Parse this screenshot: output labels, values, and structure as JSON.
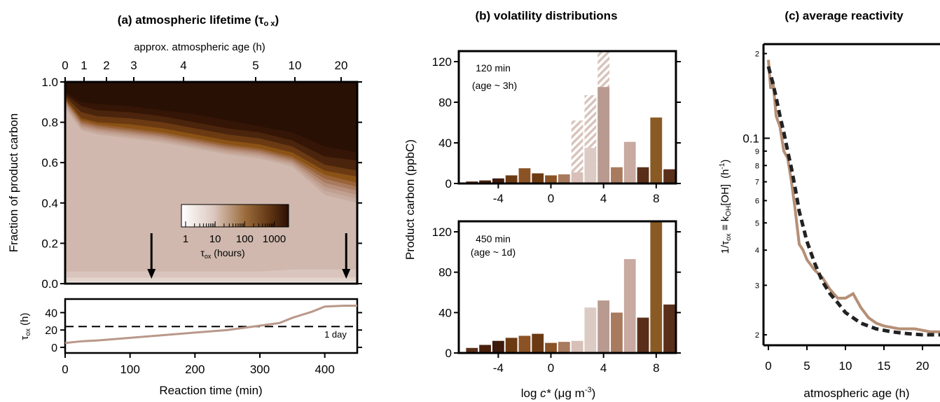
{
  "colors": {
    "sheet": [
      "#f6f1ee",
      "#e4d4ce",
      "#d9c5bd",
      "#d0b8ae",
      "#c8ac9f",
      "#c0a090",
      "#b78f7a",
      "#a87a5e",
      "#9a6438",
      "#8a5215",
      "#6b3a12",
      "#4a240c",
      "#351505",
      "#281005"
    ],
    "bars": [
      "#5a2f1a",
      "#4a200c",
      "#3d1a0c",
      "#6b3a12",
      "#8a5225",
      "#6b3a12",
      "#8a5225",
      "#a87a5e",
      "#d8c0b8",
      "#dccac4",
      "#b89a90",
      "#a87a5e",
      "#c9aaa0",
      "#5a2f1a",
      "#8a5a25"
    ],
    "tau_line": "#b9988a",
    "react_line": "#b58f75",
    "fit_line": "#222222"
  },
  "panel_a": {
    "title_text": "(a) atmospheric lifetime (",
    "title_sym": "τ",
    "title_sub": "o x",
    "title_end": ")",
    "top_axis_label": "approx. atmospheric age (h)",
    "top_ticks": [
      "0",
      "1",
      "2",
      "3",
      "4",
      "5",
      "10",
      "20"
    ],
    "ylabel": "Fraction of product carbon",
    "ylabels": [
      "0.0",
      "0.2",
      "0.4",
      "0.6",
      "0.8",
      "1.0"
    ],
    "colorbar_ticks": [
      "1",
      "10",
      "100",
      "1000"
    ],
    "colorbar_label": "τ",
    "colorbar_label_sub": "ox",
    "colorbar_label_end": " (hours)",
    "arrows_at_min": [
      133,
      433
    ],
    "bottom_ylabel": "τ",
    "bottom_ylabel_sub": "ox",
    "bottom_ylabel_end": " (h)",
    "bottom_ylabels": [
      "0",
      "20",
      "40"
    ],
    "one_day_label": "1 day",
    "one_day_h": 24,
    "xlabel": "Reaction time (min)",
    "xlabels": [
      "0",
      "100",
      "200",
      "300",
      "400"
    ],
    "xlim": [
      0,
      450
    ]
  },
  "panel_b": {
    "title": "(b) volatility distributions",
    "ylabel": "Product carbon (ppbC)",
    "ylabels": [
      "0",
      "40",
      "80",
      "120"
    ],
    "xlabels": [
      "-4",
      "0",
      "4",
      "8"
    ],
    "xlabel_pre": "log ",
    "xlabel_c": "c*",
    "xlabel_units": " (μg m",
    "xlabel_sup": "-3",
    "xlabel_end": ")",
    "top_line1": "120 min",
    "top_line2": "(age ~ 3h)",
    "bottom_line1": "450 min",
    "bottom_line2": "(age ~ 1d)"
  },
  "panel_c": {
    "title": "(c) average reactivity",
    "ylabel_a": "1/",
    "ylabel_tau": "τ",
    "ylabel_tau_sub": "ox",
    "ylabel_mid": " ≡ ",
    "ylabel_k": "k",
    "ylabel_k_sub": "OH",
    "ylabel_oh": "[OH]",
    "ylabel_unit": "(h",
    "ylabel_unit_sup": "-1",
    "ylabel_unit_end": ")",
    "yticks": [
      {
        "v": 0.2,
        "t": "2"
      },
      {
        "v": 0.1,
        "t": "0.1"
      },
      {
        "v": 0.09,
        "t": "9"
      },
      {
        "v": 0.08,
        "t": "8"
      },
      {
        "v": 0.07,
        "t": "7"
      },
      {
        "v": 0.06,
        "t": "6"
      },
      {
        "v": 0.05,
        "t": "5"
      },
      {
        "v": 0.04,
        "t": "4"
      },
      {
        "v": 0.03,
        "t": "3"
      },
      {
        "v": 0.02,
        "t": "2"
      }
    ],
    "xlabels": [
      "0",
      "5",
      "10",
      "15",
      "20"
    ],
    "xlabel": "atmospheric age (h)"
  },
  "chart_data": [
    {
      "type": "area",
      "title": "(a) atmospheric lifetime (τox)",
      "xlabel": "Reaction time (min)",
      "ylabel": "Fraction of product carbon",
      "xlim": [
        0,
        450
      ],
      "ylim": [
        0,
        1
      ],
      "x": [
        0,
        25,
        50,
        100,
        150,
        200,
        250,
        300,
        350,
        400,
        450
      ],
      "series": [
        {
          "values": [
            0.01,
            0.01,
            0.01,
            0.01,
            0.01,
            0.01,
            0.01,
            0.01,
            0.01,
            0.01,
            0.01
          ]
        },
        {
          "values": [
            0.03,
            0.03,
            0.03,
            0.03,
            0.03,
            0.03,
            0.03,
            0.03,
            0.03,
            0.03,
            0.03
          ]
        },
        {
          "values": [
            0.06,
            0.06,
            0.06,
            0.06,
            0.06,
            0.06,
            0.06,
            0.06,
            0.07,
            0.07,
            0.07
          ]
        },
        {
          "values": [
            0.87,
            0.76,
            0.74,
            0.72,
            0.7,
            0.67,
            0.64,
            0.62,
            0.58,
            0.44,
            0.4
          ]
        },
        {
          "values": [
            0.88,
            0.77,
            0.75,
            0.73,
            0.71,
            0.68,
            0.65,
            0.63,
            0.59,
            0.46,
            0.42
          ]
        },
        {
          "values": [
            0.89,
            0.78,
            0.76,
            0.74,
            0.72,
            0.69,
            0.66,
            0.64,
            0.6,
            0.48,
            0.44
          ]
        },
        {
          "values": [
            0.9,
            0.79,
            0.77,
            0.75,
            0.73,
            0.7,
            0.67,
            0.65,
            0.61,
            0.5,
            0.46
          ]
        },
        {
          "values": [
            0.91,
            0.8,
            0.78,
            0.76,
            0.74,
            0.71,
            0.68,
            0.66,
            0.62,
            0.52,
            0.48
          ]
        },
        {
          "values": [
            0.91,
            0.81,
            0.79,
            0.77,
            0.75,
            0.72,
            0.69,
            0.67,
            0.63,
            0.54,
            0.5
          ]
        },
        {
          "values": [
            0.92,
            0.82,
            0.8,
            0.79,
            0.77,
            0.74,
            0.71,
            0.69,
            0.65,
            0.56,
            0.53
          ]
        },
        {
          "values": [
            0.93,
            0.85,
            0.83,
            0.82,
            0.8,
            0.77,
            0.74,
            0.72,
            0.68,
            0.59,
            0.56
          ]
        },
        {
          "values": [
            0.94,
            0.88,
            0.86,
            0.85,
            0.83,
            0.8,
            0.77,
            0.75,
            0.71,
            0.63,
            0.61
          ]
        },
        {
          "values": [
            0.95,
            0.9,
            0.89,
            0.88,
            0.86,
            0.84,
            0.81,
            0.78,
            0.75,
            0.68,
            0.65
          ]
        },
        {
          "values": [
            0.97,
            0.93,
            0.93,
            0.92,
            0.91,
            0.9,
            0.89,
            0.89,
            0.88,
            0.88,
            0.88
          ]
        }
      ]
    },
    {
      "type": "line",
      "xlabel": "Reaction time (min)",
      "ylabel": "τox (h)",
      "xlim": [
        0,
        450
      ],
      "ylim": [
        0,
        50
      ],
      "x": [
        0,
        25,
        50,
        100,
        150,
        200,
        250,
        300,
        330,
        350,
        380,
        400,
        430,
        450
      ],
      "series": [
        {
          "values": [
            5,
            7,
            8,
            11,
            14,
            17,
            20,
            25,
            28,
            34,
            41,
            47,
            48,
            48
          ]
        }
      ]
    },
    {
      "type": "bar",
      "title": "(b) volatility distributions",
      "xlabel": "log c* (μg m-3)",
      "ylabel": "Product carbon (ppbC)",
      "xlim": [
        -7,
        9.5
      ],
      "ylim": [
        0,
        130
      ],
      "categories": [
        "-6",
        "-5",
        "-4",
        "-3",
        "-2",
        "-1",
        "0",
        "1",
        "2",
        "3",
        "4",
        "5",
        "6",
        "7",
        "8",
        "9"
      ],
      "series": [
        {
          "name": "120 min",
          "values": [
            2,
            3,
            5,
            8,
            15,
            10,
            8,
            9,
            11,
            35,
            95,
            16,
            41,
            16,
            65,
            14
          ]
        },
        {
          "name": "450 min",
          "values": [
            5,
            8,
            12,
            15,
            17,
            19,
            10,
            11,
            12,
            45,
            52,
            40,
            93,
            35,
            130,
            48
          ]
        }
      ],
      "hatched_120min": [
        {
          "x": 2,
          "value": 62
        },
        {
          "x": 3,
          "value": 87
        },
        {
          "x": 4,
          "value": 130
        }
      ]
    },
    {
      "type": "line",
      "title": "(c) average reactivity",
      "xlabel": "atmospheric age (h)",
      "ylabel": "1/τox ≡ kOH[OH] (h-1)",
      "xlim": [
        0,
        25
      ],
      "ylim": [
        0.019,
        0.21
      ],
      "yscale": "log",
      "series": [
        {
          "x": [
            0,
            0.3,
            0.6,
            1,
            1.5,
            2,
            2.5,
            3,
            3.5,
            4,
            4.5,
            5,
            6,
            7,
            8,
            9,
            10,
            11,
            12,
            13,
            14,
            15,
            17,
            19,
            21,
            23,
            25
          ],
          "values": [
            0.19,
            0.15,
            0.16,
            0.12,
            0.11,
            0.09,
            0.085,
            0.07,
            0.055,
            0.042,
            0.04,
            0.037,
            0.034,
            0.032,
            0.029,
            0.027,
            0.027,
            0.028,
            0.025,
            0.023,
            0.022,
            0.0215,
            0.021,
            0.021,
            0.0205,
            0.0205,
            0.0205
          ]
        },
        {
          "x": [
            0,
            0.5,
            1,
            1.5,
            2,
            2.5,
            3,
            3.5,
            4,
            5,
            6,
            7,
            8,
            9,
            10,
            12,
            14,
            16,
            18,
            20,
            22,
            25
          ],
          "values": [
            0.18,
            0.16,
            0.14,
            0.12,
            0.105,
            0.09,
            0.078,
            0.066,
            0.055,
            0.043,
            0.036,
            0.031,
            0.028,
            0.026,
            0.024,
            0.022,
            0.021,
            0.0205,
            0.0202,
            0.02,
            0.02,
            0.02
          ]
        }
      ]
    }
  ]
}
